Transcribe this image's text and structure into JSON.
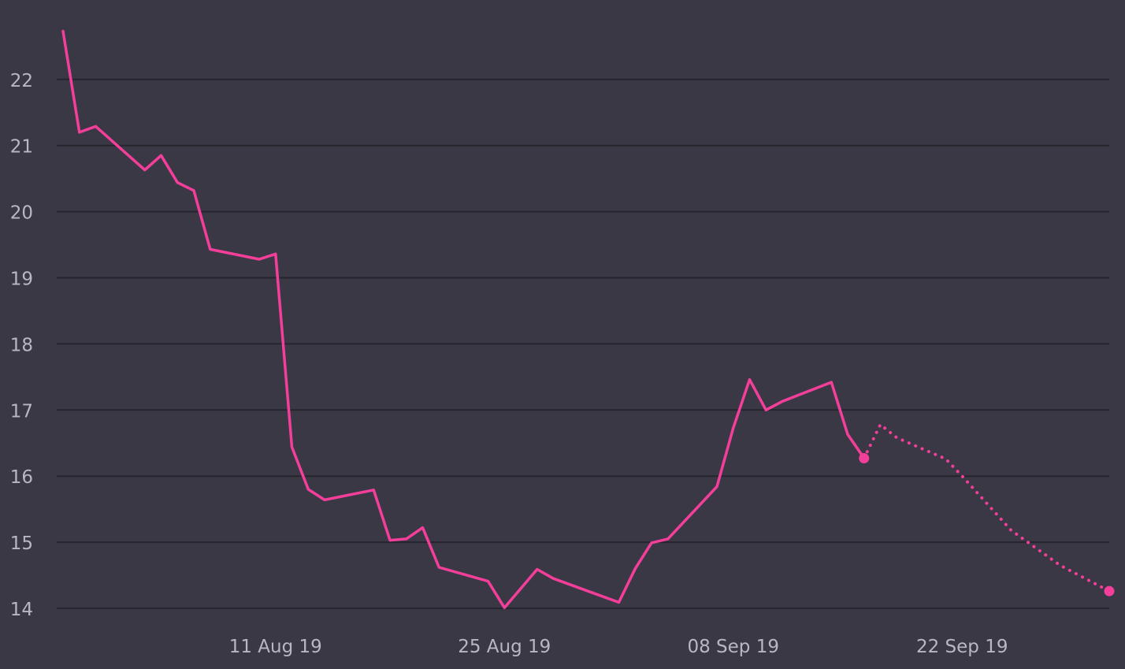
{
  "colors": {
    "background": "#3a3845",
    "grid": "#26242d",
    "series": "#f43f9a",
    "tick_text": "#b9b7c2"
  },
  "chart_data": {
    "type": "line",
    "title": "",
    "xlabel": "",
    "ylabel": "",
    "x_axis": {
      "type": "date",
      "range": [
        "2019-07-29",
        "2019-10-01"
      ],
      "tick_labels": [
        {
          "date": "2019-08-11",
          "label": "11 Aug 19"
        },
        {
          "date": "2019-08-25",
          "label": "25 Aug 19"
        },
        {
          "date": "2019-09-08",
          "label": "08 Sep 19"
        },
        {
          "date": "2019-09-22",
          "label": "22 Sep 19"
        }
      ]
    },
    "y_axis": {
      "range": [
        13.8,
        22.9
      ],
      "ticks": [
        14,
        15,
        16,
        17,
        18,
        19,
        20,
        21,
        22
      ]
    },
    "grid": true,
    "legend": "none",
    "series": [
      {
        "style": "solid",
        "color": "#f43f9a",
        "end_marker": true,
        "points": [
          {
            "x": "2019-07-29",
            "y": 22.73
          },
          {
            "x": "2019-07-30",
            "y": 21.2
          },
          {
            "x": "2019-07-31",
            "y": 21.29
          },
          {
            "x": "2019-08-03",
            "y": 20.63
          },
          {
            "x": "2019-08-04",
            "y": 20.85
          },
          {
            "x": "2019-08-05",
            "y": 20.44
          },
          {
            "x": "2019-08-06",
            "y": 20.32
          },
          {
            "x": "2019-08-07",
            "y": 19.43
          },
          {
            "x": "2019-08-10",
            "y": 19.28
          },
          {
            "x": "2019-08-11",
            "y": 19.36
          },
          {
            "x": "2019-08-12",
            "y": 16.44
          },
          {
            "x": "2019-08-13",
            "y": 15.8
          },
          {
            "x": "2019-08-14",
            "y": 15.64
          },
          {
            "x": "2019-08-17",
            "y": 15.79
          },
          {
            "x": "2019-08-18",
            "y": 15.03
          },
          {
            "x": "2019-08-19",
            "y": 15.05
          },
          {
            "x": "2019-08-20",
            "y": 15.22
          },
          {
            "x": "2019-08-21",
            "y": 14.62
          },
          {
            "x": "2019-08-24",
            "y": 14.41
          },
          {
            "x": "2019-08-25",
            "y": 14.01
          },
          {
            "x": "2019-08-27",
            "y": 14.59
          },
          {
            "x": "2019-08-28",
            "y": 14.45
          },
          {
            "x": "2019-09-01",
            "y": 14.09
          },
          {
            "x": "2019-09-02",
            "y": 14.6
          },
          {
            "x": "2019-09-03",
            "y": 14.99
          },
          {
            "x": "2019-09-04",
            "y": 15.05
          },
          {
            "x": "2019-09-07",
            "y": 15.84
          },
          {
            "x": "2019-09-08",
            "y": 16.73
          },
          {
            "x": "2019-09-09",
            "y": 17.46
          },
          {
            "x": "2019-09-10",
            "y": 17.0
          },
          {
            "x": "2019-09-11",
            "y": 17.13
          },
          {
            "x": "2019-09-14",
            "y": 17.42
          },
          {
            "x": "2019-09-15",
            "y": 16.63
          },
          {
            "x": "2019-09-16",
            "y": 16.27
          }
        ]
      },
      {
        "style": "dotted",
        "color": "#f43f9a",
        "end_marker": true,
        "points": [
          {
            "x": "2019-09-16",
            "y": 16.27
          },
          {
            "x": "2019-09-17",
            "y": 16.78
          },
          {
            "x": "2019-09-18",
            "y": 16.58
          },
          {
            "x": "2019-09-21",
            "y": 16.26
          },
          {
            "x": "2019-09-22",
            "y": 16.0
          },
          {
            "x": "2019-09-25",
            "y": 15.18
          },
          {
            "x": "2019-09-28",
            "y": 14.65
          },
          {
            "x": "2019-10-01",
            "y": 14.26
          }
        ]
      }
    ]
  }
}
